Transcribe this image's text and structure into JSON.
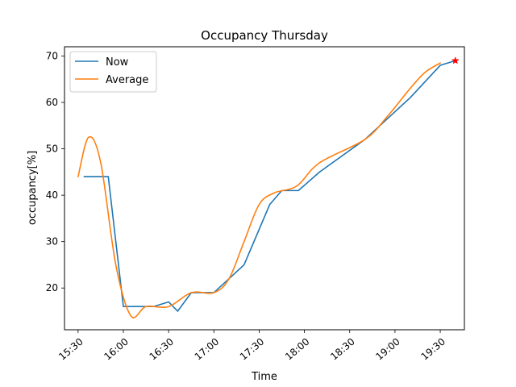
{
  "chart_data": {
    "type": "line",
    "title": "Occupancy Thursday",
    "xlabel": "Time",
    "ylabel": "occupancy[%]",
    "x_unit": "time of day (hh:mm)",
    "xlim": [
      "15:21",
      "19:46"
    ],
    "ylim": [
      11,
      72
    ],
    "x_ticks": [
      "15:30",
      "16:00",
      "16:30",
      "17:00",
      "17:30",
      "18:00",
      "18:30",
      "19:00",
      "19:30"
    ],
    "y_ticks": [
      20,
      30,
      40,
      50,
      60,
      70
    ],
    "grid": false,
    "legend": {
      "placement": "top-left",
      "entries": [
        "Now",
        "Average"
      ]
    },
    "series": [
      {
        "name": "Now",
        "color": "#1f77b4",
        "points": [
          [
            "15:34",
            44
          ],
          [
            "15:50",
            44
          ],
          [
            "16:00",
            16
          ],
          [
            "16:15",
            16
          ],
          [
            "16:20",
            16
          ],
          [
            "16:30",
            17
          ],
          [
            "16:36",
            15
          ],
          [
            "16:45",
            19
          ],
          [
            "17:00",
            19
          ],
          [
            "17:20",
            25
          ],
          [
            "17:37",
            38
          ],
          [
            "17:45",
            41
          ],
          [
            "17:56",
            41
          ],
          [
            "18:10",
            45
          ],
          [
            "18:40",
            52
          ],
          [
            "18:50",
            55
          ],
          [
            "19:10",
            61
          ],
          [
            "19:30",
            68
          ],
          [
            "19:40",
            69
          ]
        ]
      },
      {
        "name": "Average",
        "color": "#ff7f0e",
        "smooth": true,
        "points": [
          [
            "15:30",
            44
          ],
          [
            "15:37",
            52.5
          ],
          [
            "15:45",
            47
          ],
          [
            "15:55",
            25
          ],
          [
            "16:05",
            14
          ],
          [
            "16:15",
            16
          ],
          [
            "16:30",
            16
          ],
          [
            "16:45",
            19
          ],
          [
            "17:00",
            19
          ],
          [
            "17:10",
            22
          ],
          [
            "17:20",
            30
          ],
          [
            "17:30",
            38
          ],
          [
            "17:40",
            40.5
          ],
          [
            "17:55",
            42
          ],
          [
            "18:10",
            47
          ],
          [
            "18:40",
            52
          ],
          [
            "18:55",
            57
          ],
          [
            "19:10",
            63
          ],
          [
            "19:20",
            66.5
          ],
          [
            "19:30",
            68.5
          ]
        ]
      }
    ],
    "marker": {
      "x": "19:40",
      "y": 69,
      "symbol": "star",
      "color": "#ff0000"
    }
  }
}
